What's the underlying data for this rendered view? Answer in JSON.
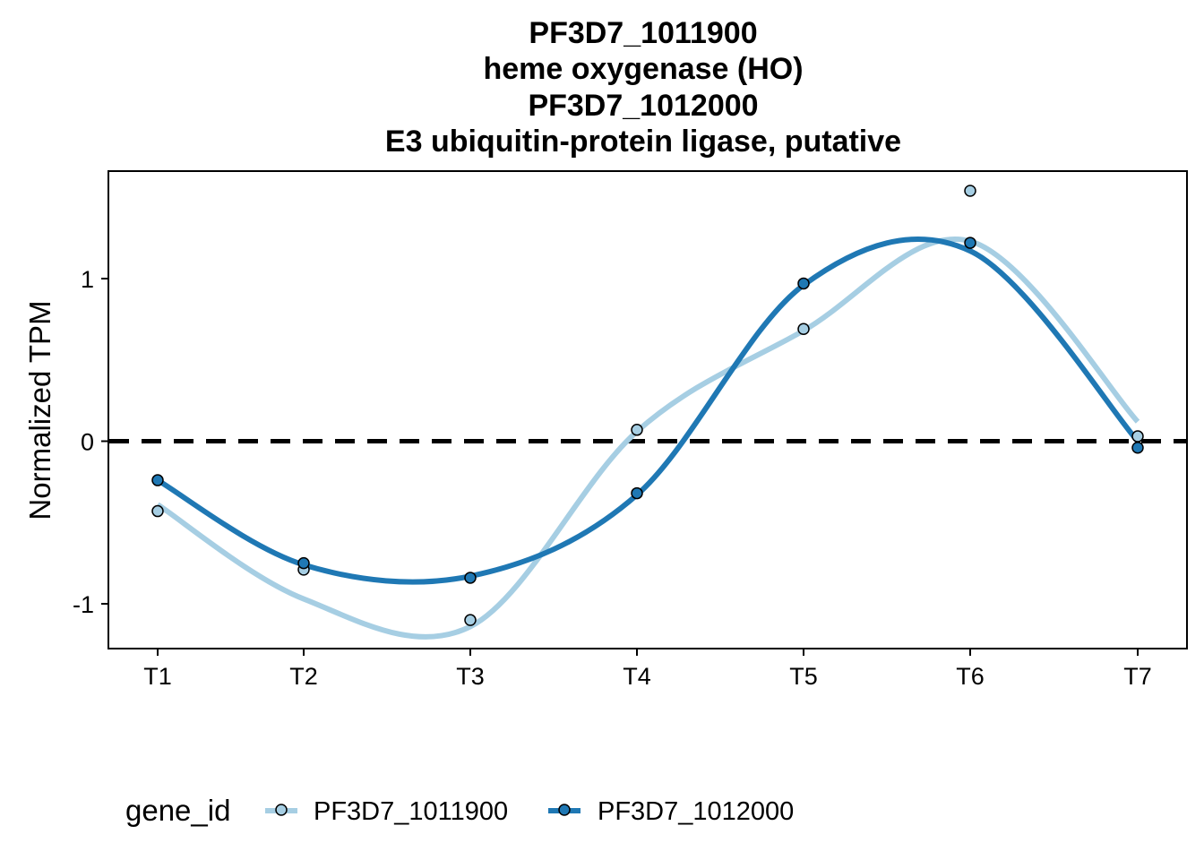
{
  "chart_data": {
    "type": "line",
    "title_lines": [
      "PF3D7_1011900",
      "heme oxygenase (HO)",
      "PF3D7_1012000",
      "E3 ubiquitin-protein ligase, putative"
    ],
    "xlabel": "",
    "ylabel": "Normalized TPM",
    "categories": [
      "T1",
      "T2",
      "T3",
      "T4",
      "T5",
      "T6",
      "T7"
    ],
    "ylim": [
      -1.3,
      1.65
    ],
    "yticks": [
      -1,
      0,
      1
    ],
    "ytick_labels": [
      "-1",
      "0",
      "1"
    ],
    "reference_line": {
      "y": 0,
      "style": "dashed",
      "color": "#000000"
    },
    "grid": false,
    "legend": {
      "title": "gene_id",
      "position": "bottom"
    },
    "series": [
      {
        "name": "PF3D7_1011900",
        "color": "#a6cee3",
        "values": [
          -0.43,
          -0.79,
          -1.1,
          0.07,
          0.69,
          1.54,
          0.03
        ],
        "smooth": [
          -0.39,
          -0.97,
          -1.14,
          0.06,
          0.68,
          1.23,
          0.12
        ]
      },
      {
        "name": "PF3D7_1012000",
        "color": "#1f78b4",
        "values": [
          -0.24,
          -0.75,
          -0.84,
          -0.32,
          0.97,
          1.22,
          -0.04
        ],
        "smooth": [
          -0.24,
          -0.76,
          -0.83,
          -0.33,
          0.96,
          1.17,
          0.0
        ]
      }
    ]
  }
}
